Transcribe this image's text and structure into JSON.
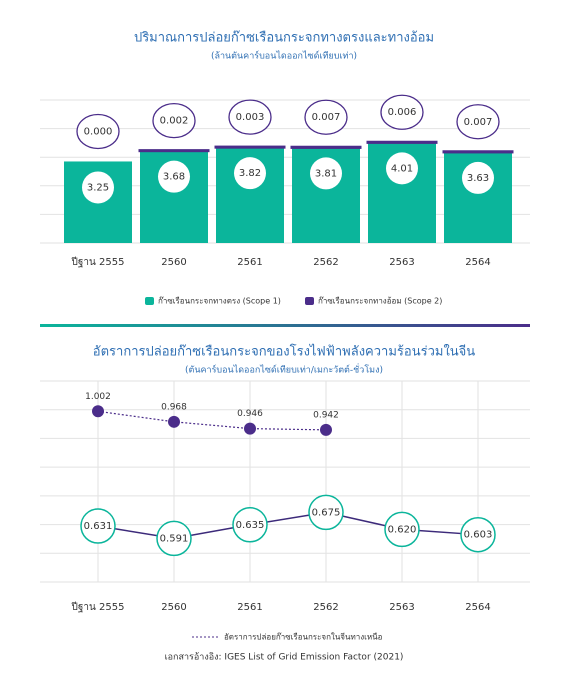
{
  "chart_data": [
    {
      "type": "stacked-bar",
      "title": "ปริมาณการปล่อยก๊าซเรือนกระจกทางตรงและทางอ้อม",
      "subtitle": "(ล้านตันคาร์บอนไดออกไซด์เทียบเท่า)",
      "categories": [
        "ปีฐาน 2555",
        "2560",
        "2561",
        "2562",
        "2563",
        "2564"
      ],
      "series": [
        {
          "name": "ก๊าซเรือนกระจกทางตรง (Scope 1)",
          "color": "#0bb59b",
          "values": [
            3.25,
            3.68,
            3.82,
            3.81,
            4.01,
            3.63
          ]
        },
        {
          "name": "ก๊าซเรือนกระจกทางอ้อม (Scope 2)",
          "color": "#4b2d8a",
          "values": [
            0,
            0.002,
            0.003,
            0.007,
            0.006,
            0.007
          ],
          "value_labels": [
            "0.000",
            "0.002",
            "0.003",
            "0.007",
            "0.006",
            "0.007"
          ]
        }
      ],
      "ylim": [
        0,
        5.7
      ],
      "grid": true,
      "legend": "bottom"
    },
    {
      "type": "line",
      "title": "อัตราการปล่อยก๊าซเรือนกระจกของโรงไฟฟ้าพลังความร้อนร่วมในจีน",
      "subtitle": "(ตันคาร์บอนไดออกไซด์เทียบเท่า/เมกะวัตต์-ชั่วโมง)",
      "categories": [
        "ปีฐาน 2555",
        "2560",
        "2561",
        "2562",
        "2563",
        "2564"
      ],
      "series": [
        {
          "name": "อัตราการปล่อยก๊าซเรือนกระจกในจีนทางเหนือ",
          "color": "#4b2d8a",
          "values": [
            1.002,
            0.968,
            0.946,
            0.942,
            null,
            null
          ]
        },
        {
          "color": "#0bb59b",
          "values": [
            0.631,
            0.591,
            0.635,
            0.675,
            0.62,
            0.603
          ],
          "value_labels": [
            "0.631",
            "0.591",
            "0.635",
            "0.675",
            "0.620",
            "0.603"
          ]
        }
      ],
      "ylim": [
        0.45,
        1.1
      ],
      "grid": true,
      "legend": "bottom",
      "source": "เอกสารอ้างอิง: IGES List of Grid Emission Factor (2021)"
    }
  ]
}
